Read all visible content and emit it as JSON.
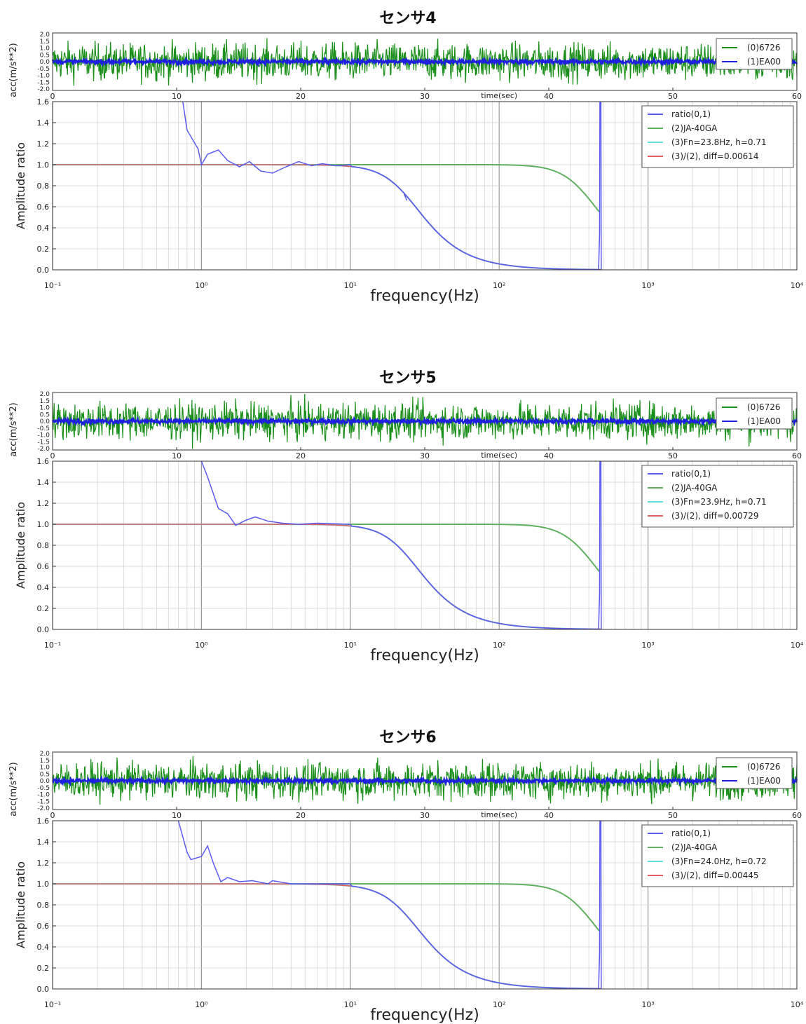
{
  "colors": {
    "ch0": "#1a8f1a",
    "ch1": "#1f1fe0",
    "ratio": "#5b5bf0",
    "ja40ga": "#60b060",
    "fn_fit": "#66dddd",
    "div": "#e06060",
    "grid": "#cfcfcf",
    "major_grid": "#9a9a9a"
  },
  "chart_data": [
    {
      "type": "line",
      "title": "センサ4",
      "time_panel": {
        "ylabel": "acc(m/s**2)",
        "xlabel": "time(sec)",
        "xlim": [
          0,
          60
        ],
        "ylim": [
          -2.0,
          2.0
        ],
        "yticks": [
          "2.0",
          "1.5",
          "1.0",
          "0.5",
          "0.0",
          "-0.5",
          "-1.0",
          "-1.5",
          "-2.0"
        ],
        "xticks": [
          "10",
          "20",
          "30",
          "40",
          "50",
          "60"
        ],
        "x_start_tick": "0",
        "series": [
          {
            "name": "(0)6726",
            "color_key": "ch0",
            "amplitude": 1.2
          },
          {
            "name": "(1)EA00",
            "color_key": "ch1",
            "amplitude": 0.15
          }
        ]
      },
      "freq_panel": {
        "ylabel": "Amplitude ratio",
        "xlabel": "frequency(Hz)",
        "xscale": "log",
        "xlim": [
          0.1,
          10000
        ],
        "ylim": [
          0.0,
          1.6
        ],
        "xticks": [
          "10⁻¹",
          "10⁰",
          "10¹",
          "10²",
          "10³",
          "10⁴"
        ],
        "yticks": [
          "0.0",
          "0.2",
          "0.4",
          "0.6",
          "0.8",
          "1.0",
          "1.2",
          "1.4",
          "1.6"
        ],
        "legend": [
          "ratio(0,1)",
          "(2)JA-40GA",
          "(3)Fn=23.8Hz, h=0.71",
          "(3)/(2), diff=0.00614"
        ],
        "fn": 23.8,
        "h": 0.71,
        "ja_fn": 380,
        "ja_h": 0.7,
        "spike_x": 480,
        "ratio_points": [
          [
            0.75,
            1.6
          ],
          [
            0.8,
            1.33
          ],
          [
            0.95,
            1.15
          ],
          [
            1.0,
            1.0
          ],
          [
            1.1,
            1.1
          ],
          [
            1.3,
            1.14
          ],
          [
            1.5,
            1.04
          ],
          [
            1.8,
            0.98
          ],
          [
            2.1,
            1.03
          ],
          [
            2.5,
            0.94
          ],
          [
            3.0,
            0.92
          ],
          [
            3.7,
            0.98
          ],
          [
            4.5,
            1.03
          ],
          [
            5.5,
            0.99
          ],
          [
            6.5,
            1.01
          ],
          [
            8,
            0.99
          ],
          [
            10,
            1.0
          ]
        ],
        "ratio_tail": [
          [
            23,
            0.72
          ],
          [
            24,
            0.66
          ]
        ]
      }
    },
    {
      "type": "line",
      "title": "センサ5",
      "time_panel": {
        "ylabel": "acc(m/s**2)",
        "xlabel": "time(sec)",
        "xlim": [
          0,
          60
        ],
        "ylim": [
          -2.0,
          2.0
        ],
        "yticks": [
          "2.0",
          "1.5",
          "1.0",
          "0.5",
          "0.0",
          "-0.5",
          "-1.0",
          "-1.5",
          "-2.0"
        ],
        "xticks": [
          "10",
          "20",
          "30",
          "40",
          "50",
          "60"
        ],
        "x_start_tick": "0",
        "series": [
          {
            "name": "(0)6726",
            "color_key": "ch0",
            "amplitude": 1.2
          },
          {
            "name": "(1)EA00",
            "color_key": "ch1",
            "amplitude": 0.15
          }
        ]
      },
      "freq_panel": {
        "ylabel": "Amplitude ratio",
        "xlabel": "frequency(Hz)",
        "xscale": "log",
        "xlim": [
          0.1,
          10000
        ],
        "ylim": [
          0.0,
          1.6
        ],
        "xticks": [
          "10⁻¹",
          "10⁰",
          "10¹",
          "10²",
          "10³",
          "10⁴"
        ],
        "yticks": [
          "0.0",
          "0.2",
          "0.4",
          "0.6",
          "0.8",
          "1.0",
          "1.2",
          "1.4",
          "1.6"
        ],
        "legend": [
          "ratio(0,1)",
          "(2)JA-40GA",
          "(3)Fn=23.9Hz, h=0.71",
          "(3)/(2), diff=0.00729"
        ],
        "fn": 23.9,
        "h": 0.71,
        "ja_fn": 380,
        "ja_h": 0.7,
        "spike_x": 480,
        "ratio_points": [
          [
            1.0,
            1.6
          ],
          [
            1.1,
            1.45
          ],
          [
            1.3,
            1.15
          ],
          [
            1.5,
            1.1
          ],
          [
            1.7,
            0.99
          ],
          [
            2.0,
            1.04
          ],
          [
            2.3,
            1.07
          ],
          [
            2.8,
            1.03
          ],
          [
            3.5,
            1.01
          ],
          [
            4.5,
            1.0
          ],
          [
            6,
            1.01
          ],
          [
            10,
            1.0
          ]
        ],
        "ratio_tail": []
      }
    },
    {
      "type": "line",
      "title": "センサ6",
      "time_panel": {
        "ylabel": "acc(m/s**2)",
        "xlabel": "time(sec)",
        "xlim": [
          0,
          60
        ],
        "ylim": [
          -2.0,
          2.0
        ],
        "yticks": [
          "2.0",
          "1.5",
          "1.0",
          "0.5",
          "0.0",
          "-0.5",
          "-1.0",
          "-1.5",
          "-2.0"
        ],
        "xticks": [
          "10",
          "20",
          "30",
          "40",
          "50",
          "60"
        ],
        "x_start_tick": "0",
        "series": [
          {
            "name": "(0)6726",
            "color_key": "ch0",
            "amplitude": 1.2
          },
          {
            "name": "(1)EA00",
            "color_key": "ch1",
            "amplitude": 0.15
          }
        ]
      },
      "freq_panel": {
        "ylabel": "Amplitude ratio",
        "xlabel": "frequency(Hz)",
        "xscale": "log",
        "xlim": [
          0.1,
          10000
        ],
        "ylim": [
          0.0,
          1.6
        ],
        "xticks": [
          "10⁻¹",
          "10⁰",
          "10¹",
          "10²",
          "10³",
          "10⁴"
        ],
        "yticks": [
          "0.0",
          "0.2",
          "0.4",
          "0.6",
          "0.8",
          "1.0",
          "1.2",
          "1.4",
          "1.6"
        ],
        "legend": [
          "ratio(0,1)",
          "(2)JA-40GA",
          "(3)Fn=24.0Hz, h=0.72",
          "(3)/(2), diff=0.00445"
        ],
        "fn": 24.0,
        "h": 0.72,
        "ja_fn": 380,
        "ja_h": 0.7,
        "spike_x": 480,
        "ratio_points": [
          [
            0.7,
            1.6
          ],
          [
            0.8,
            1.3
          ],
          [
            0.85,
            1.23
          ],
          [
            1.0,
            1.26
          ],
          [
            1.1,
            1.36
          ],
          [
            1.2,
            1.2
          ],
          [
            1.35,
            1.02
          ],
          [
            1.5,
            1.06
          ],
          [
            1.8,
            1.02
          ],
          [
            2.2,
            1.03
          ],
          [
            2.8,
            1.0
          ],
          [
            3.0,
            1.03
          ],
          [
            4,
            1.0
          ],
          [
            10,
            1.0
          ]
        ],
        "ratio_tail": []
      }
    }
  ]
}
